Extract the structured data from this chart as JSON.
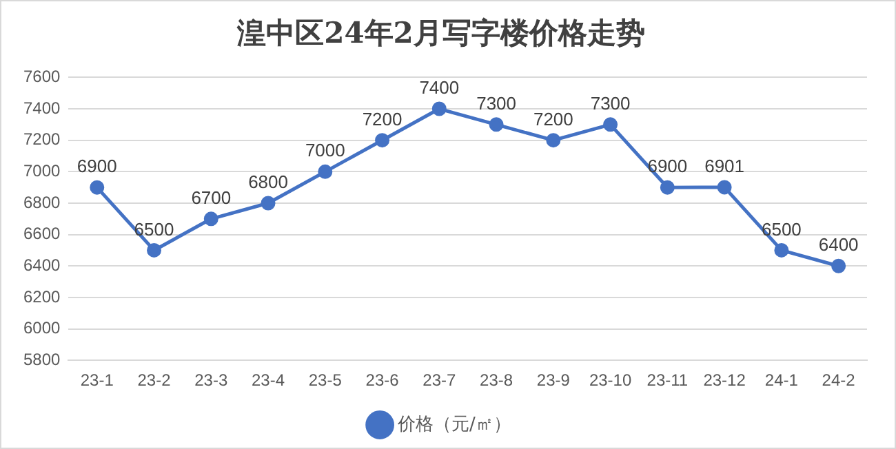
{
  "chart_data": {
    "type": "line",
    "title": "湟中区24年2月写字楼价格走势",
    "categories": [
      "23-1",
      "23-2",
      "23-3",
      "23-4",
      "23-5",
      "23-6",
      "23-7",
      "23-8",
      "23-9",
      "23-10",
      "23-11",
      "23-12",
      "24-1",
      "24-2"
    ],
    "series": [
      {
        "name": "价格（元/㎡）",
        "color": "#4472c4",
        "values": [
          6900,
          6500,
          6700,
          6800,
          7000,
          7200,
          7400,
          7300,
          7200,
          7300,
          6900,
          6901,
          6500,
          6400
        ]
      }
    ],
    "ylim": [
      5800,
      7600
    ],
    "yticks": [
      5800,
      6000,
      6200,
      6400,
      6600,
      6800,
      7000,
      7200,
      7400,
      7600
    ],
    "grid": "y",
    "legend": "bottom",
    "marker": "circle",
    "line_style": "solid",
    "data_labels": true
  }
}
